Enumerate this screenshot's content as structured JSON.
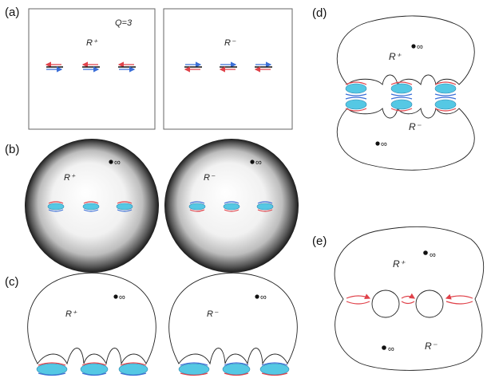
{
  "panels": {
    "a": {
      "label": "(a)",
      "left_region": "R⁺",
      "right_region": "R⁻",
      "q_label": "Q=3"
    },
    "b": {
      "label": "(b)",
      "left_region": "R⁺",
      "right_region": "R⁻",
      "left_infinity": "∞",
      "right_infinity": "∞"
    },
    "c": {
      "label": "(c)",
      "left_region": "R⁺",
      "right_region": "R⁻",
      "left_infinity": "∞",
      "right_infinity": "∞"
    },
    "d": {
      "label": "(d)",
      "top_region": "R⁺",
      "bottom_region": "R⁻",
      "top_infinity": "∞",
      "bottom_infinity": "∞"
    },
    "e": {
      "label": "(e)",
      "top_region": "R⁺",
      "bottom_region": "R⁻",
      "top_infinity": "∞",
      "bottom_infinity": "∞"
    }
  },
  "colors": {
    "disc": "#55c8e4",
    "arrow_red": "#e0424a",
    "arrow_blue": "#3b6fd8"
  }
}
